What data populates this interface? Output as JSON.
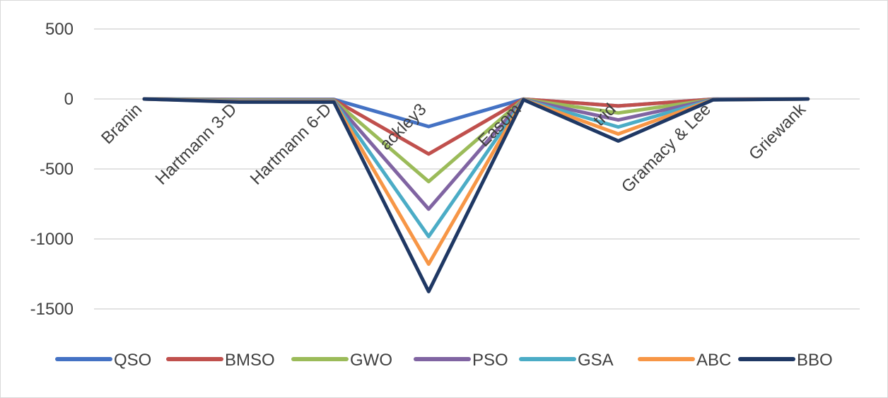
{
  "chart_data": {
    "type": "line",
    "title": "",
    "xlabel": "",
    "ylabel": "",
    "ylim": [
      -1500,
      500
    ],
    "yticks": [
      500,
      0,
      -500,
      -1000,
      -1500
    ],
    "ytick_labels": [
      "500",
      "0",
      "-500",
      "-1000",
      "-1500"
    ],
    "grid": true,
    "legend": "bottom",
    "categories": [
      "Branin",
      "Hartmann 3-D",
      "Hartmann 6-D",
      "ackley3",
      "Easom",
      "trid",
      "Gramacy & Lee",
      "Griewank"
    ],
    "series": [
      {
        "name": "QSO",
        "color": "#4472c4",
        "values": [
          0,
          -3,
          -3,
          -197,
          -1,
          -50,
          -1,
          0
        ]
      },
      {
        "name": "BMSO",
        "color": "#c0504d",
        "values": [
          0,
          -6,
          -6,
          -393,
          -1,
          -50,
          -2,
          0
        ]
      },
      {
        "name": "GWO",
        "color": "#9bbb59",
        "values": [
          0,
          -9,
          -9,
          -590,
          -2,
          -100,
          -3,
          0
        ]
      },
      {
        "name": "PSO",
        "color": "#8064a2",
        "values": [
          0,
          -13,
          -12,
          -787,
          -3,
          -150,
          -3,
          0
        ]
      },
      {
        "name": "GSA",
        "color": "#4bacc6",
        "values": [
          0,
          -16,
          -15,
          -983,
          -4,
          -200,
          -4,
          0
        ]
      },
      {
        "name": "ABC",
        "color": "#f79646",
        "values": [
          0,
          -19,
          -18,
          -1180,
          -4,
          -250,
          -5,
          0
        ]
      },
      {
        "name": "BBO",
        "color": "#1f3864",
        "values": [
          0,
          -22,
          -21,
          -1376,
          -5,
          -300,
          -6,
          0
        ]
      }
    ]
  }
}
